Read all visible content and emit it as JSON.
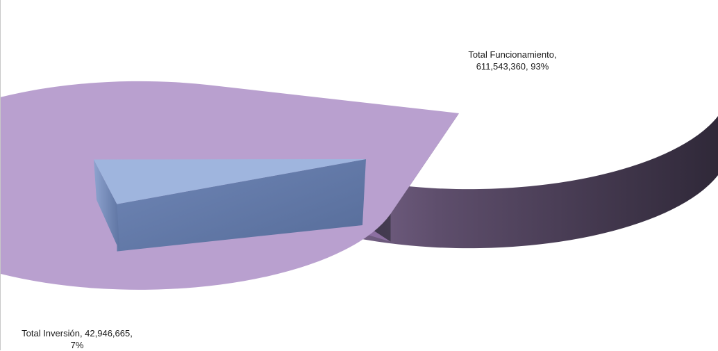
{
  "chart_data": {
    "type": "pie",
    "categories": [
      "Total Funcionamiento",
      "Total Inversión"
    ],
    "values": [
      611543360,
      42946665
    ],
    "percentages": [
      93,
      7
    ],
    "colors": [
      "#b9a0cf",
      "#9fb5de"
    ],
    "labels": [
      {
        "line1": "Total Funcionamiento,",
        "line2": "611,543,360, 93%"
      },
      {
        "line1": "Total Inversión, 42,946,665,",
        "line2": "7%"
      }
    ],
    "style": "3d-exploded"
  }
}
